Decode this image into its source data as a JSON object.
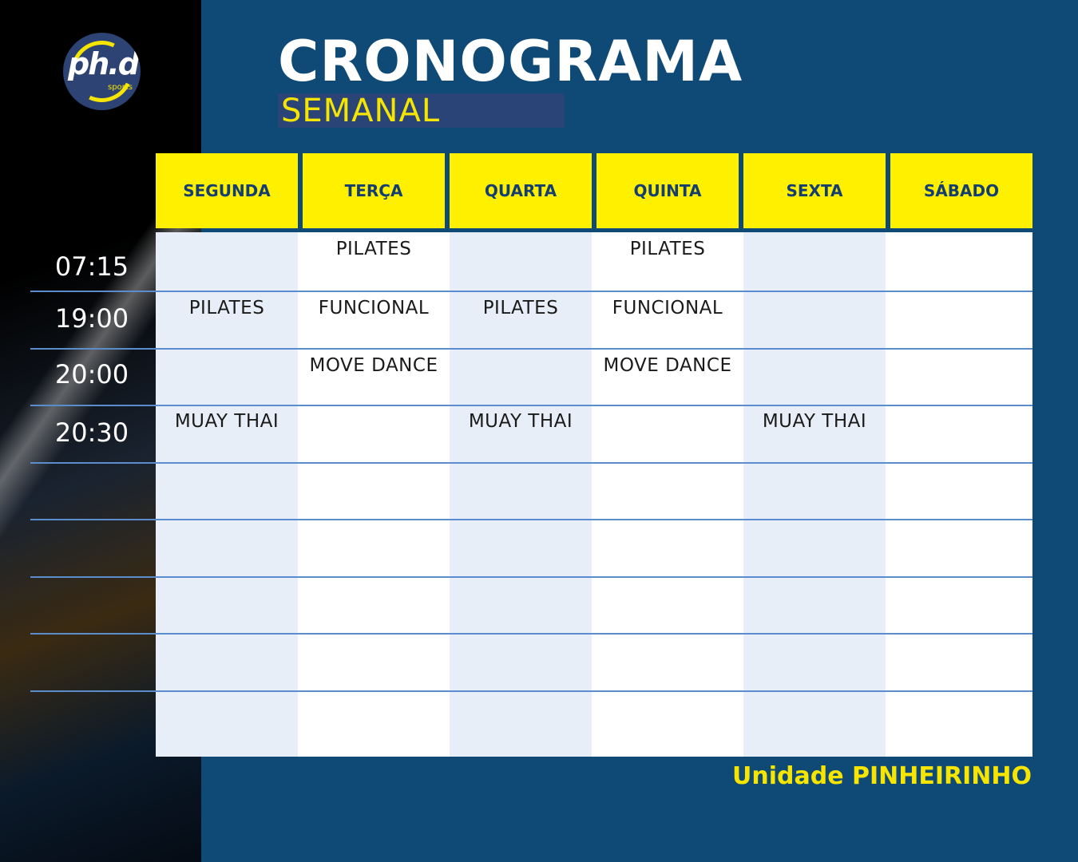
{
  "logo": {
    "text": "ph.d",
    "sub": "sports"
  },
  "title": "CRONOGRAMA",
  "subtitle": "SEMANAL",
  "days": [
    "SEGUNDA",
    "TERÇA",
    "QUARTA",
    "QUINTA",
    "SEXTA",
    "SÁBADO"
  ],
  "times": [
    "07:15",
    "19:00",
    "20:00",
    "20:30"
  ],
  "schedule": [
    [
      "",
      "PILATES",
      "",
      "PILATES",
      "",
      ""
    ],
    [
      "PILATES",
      "FUNCIONAL",
      "PILATES",
      "FUNCIONAL",
      "",
      ""
    ],
    [
      "",
      "MOVE DANCE",
      "",
      "MOVE DANCE",
      "",
      ""
    ],
    [
      "MUAY THAI",
      "",
      "MUAY THAI",
      "",
      "MUAY THAI",
      ""
    ]
  ],
  "footer": "Unidade PINHEIRINHO",
  "colors": {
    "background": "#0f4a77",
    "header": "#fff000",
    "accent": "#f6e500"
  }
}
